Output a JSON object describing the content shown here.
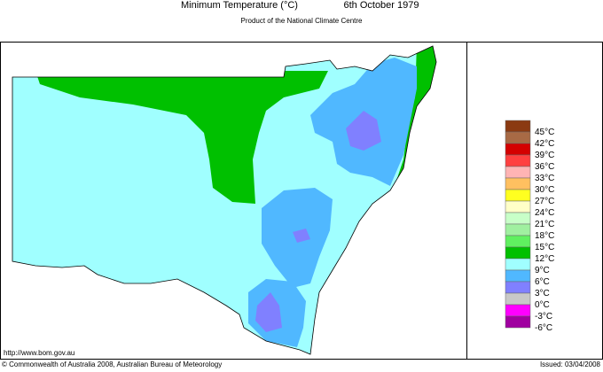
{
  "header": {
    "title": "Minimum Temperature (°C)",
    "date": "6th October 1979",
    "subtitle": "Product of the National Climate Centre"
  },
  "legend": [
    {
      "label": "45°C",
      "color": "#8b3a12"
    },
    {
      "label": "42°C",
      "color": "#a86a45"
    },
    {
      "label": "39°C",
      "color": "#d40000"
    },
    {
      "label": "36°C",
      "color": "#ff4040"
    },
    {
      "label": "33°C",
      "color": "#ffb4b4"
    },
    {
      "label": "30°C",
      "color": "#ffc060"
    },
    {
      "label": "27°C",
      "color": "#ffff20"
    },
    {
      "label": "24°C",
      "color": "#ffffc8"
    },
    {
      "label": "21°C",
      "color": "#c8ffc8"
    },
    {
      "label": "18°C",
      "color": "#a0f0a0"
    },
    {
      "label": "15°C",
      "color": "#60f060"
    },
    {
      "label": "12°C",
      "color": "#00c000"
    },
    {
      "label": "9°C",
      "color": "#a0ffff"
    },
    {
      "label": "6°C",
      "color": "#50b8ff"
    },
    {
      "label": "3°C",
      "color": "#8080ff"
    },
    {
      "label": "0°C",
      "color": "#c8c8c8"
    },
    {
      "label": "-3°C",
      "color": "#ff00ff"
    },
    {
      "label": "-6°C",
      "color": "#a000a0"
    }
  ],
  "footer": {
    "url": "http://www.bom.gov.au",
    "copyright": "© Commonwealth of Australia 2008, Australian Bureau of Meteorology",
    "issued": "Issued: 03/04/2008"
  }
}
